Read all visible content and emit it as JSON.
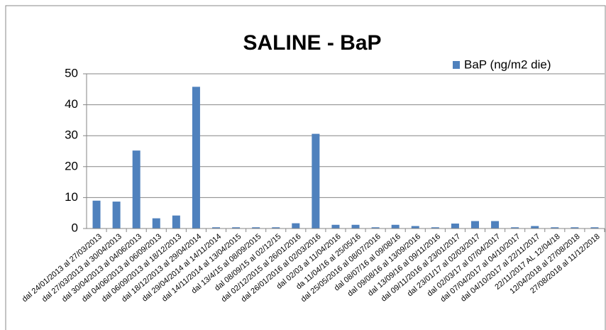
{
  "chart_data": {
    "type": "bar",
    "title": "SALINE - BaP",
    "categories": [
      "dal 24/01/2013 al 27/03/2013",
      "dal 27/03/2013 al 30/04/2013",
      "dal 30/04/2013 al 04/06/2013",
      "dal 04/06/2013 al 06/09/2013",
      "dal 06/09/2013 al 18/12/2013",
      "dal 18/12/2013 al 29/04/2014",
      "dal 29/04/2014 al 14/11/2014",
      "dal 14/11/2014 al 13/04/2015",
      "dal 13/4/15 al 08/09/2015",
      "dal 08/09/15 al 02/12/15",
      "dal 02/12/2015 al 26/01/2016",
      "dal 26/01/2016 al 02/03/2016",
      "dal 02/03 al 11/04/2016",
      "da 11/04/16 al 25/05/16",
      "dal 25/05/2016 al 08/07/2016",
      "dal 08/07/16 al 09/08/16",
      "dal 09/08/16 al 13/09/2016",
      "dal 13/09/16 al 09/11/2016",
      "dal 09/11/2016 al 23/01/2017",
      "dal 23/01/17 al 02/03/2017",
      "dal 02/03/17 al 07/04/2017",
      "dal 07/04/2017 al 04/10/2017",
      "dal 04/10/2017 al 22/11/2017",
      "22/11/2017 AL 12/04/18",
      "12/04/2018 al 27/08/2018",
      "27/08/2018 al 11/12/2018"
    ],
    "series": [
      {
        "name": "BaP (ng/m2 die)",
        "color": "#4f81bd",
        "values": [
          9,
          8.7,
          25.2,
          3.3,
          4.2,
          45.8,
          0.4,
          0.4,
          0.4,
          0.4,
          1.7,
          30.6,
          1.2,
          1.2,
          0.4,
          1.2,
          0.8,
          0.4,
          1.6,
          2.4,
          2.4,
          0.4,
          0.8,
          0.4,
          0.4,
          0.4
        ]
      }
    ],
    "ylim": [
      0,
      50
    ],
    "yticks": [
      0,
      10,
      20,
      30,
      40,
      50
    ],
    "grid": true,
    "legend": "top-right"
  }
}
